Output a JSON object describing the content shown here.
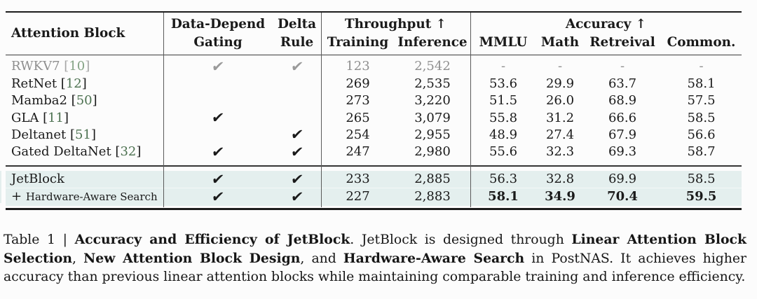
{
  "colors": {
    "background": "#fcfcfc",
    "text": "#1a1a1a",
    "muted_text": "#8f8f8f",
    "citation_green": "#4c7150",
    "muted_citation_green": "#85a385",
    "highlight_background": "#e4efee",
    "rule_color": "#1c1c1c"
  },
  "table": {
    "header": {
      "attention_block": "Attention Block",
      "gating_line1": "Data-Depend",
      "gating_line2": "Gating",
      "delta_line1": "Delta",
      "delta_line2": "Rule",
      "throughput_group": "Throughput ↑",
      "accuracy_group": "Accuracy ↑",
      "training": "Training",
      "inference": "Inference",
      "mmlu": "MMLU",
      "math": "Math",
      "retreival": "Retreival",
      "common": "Common."
    },
    "checkmark": "✔",
    "rows": [
      {
        "name": "RWKV7",
        "cite": "10",
        "gating": true,
        "delta": true,
        "training": "123",
        "inference": "2,542",
        "mmlu": "-",
        "math": "-",
        "retreival": "-",
        "common": "-",
        "muted": true
      },
      {
        "name": "RetNet",
        "cite": "12",
        "gating": false,
        "delta": false,
        "training": "269",
        "inference": "2,535",
        "mmlu": "53.6",
        "math": "29.9",
        "retreival": "63.7",
        "common": "58.1"
      },
      {
        "name": "Mamba2",
        "cite": "50",
        "gating": false,
        "delta": false,
        "training": "273",
        "inference": "3,220",
        "mmlu": "51.5",
        "math": "26.0",
        "retreival": "68.9",
        "common": "57.5"
      },
      {
        "name": "GLA",
        "cite": "11",
        "gating": true,
        "delta": false,
        "training": "265",
        "inference": "3,079",
        "mmlu": "55.8",
        "math": "31.2",
        "retreival": "66.6",
        "common": "58.5"
      },
      {
        "name": "Deltanet",
        "cite": "51",
        "gating": false,
        "delta": true,
        "training": "254",
        "inference": "2,955",
        "mmlu": "48.9",
        "math": "27.4",
        "retreival": "67.9",
        "common": "56.6"
      },
      {
        "name": "Gated DeltaNet",
        "cite": "32",
        "gating": true,
        "delta": true,
        "training": "247",
        "inference": "2,980",
        "mmlu": "55.6",
        "math": "32.3",
        "retreival": "69.3",
        "common": "58.7"
      }
    ],
    "highlight_rows": [
      {
        "name": "JetBlock",
        "gating": true,
        "delta": true,
        "training": "233",
        "inference": "2,885",
        "mmlu": "56.3",
        "math": "32.8",
        "retreival": "69.9",
        "common": "58.5"
      },
      {
        "name_prefix": "+",
        "name": "Hardware-Aware Search",
        "small_name": true,
        "gating": true,
        "delta": true,
        "training": "227",
        "inference": "2,883",
        "mmlu": "58.1",
        "math": "34.9",
        "retreival": "70.4",
        "common": "59.5",
        "bold_accuracy": true
      }
    ]
  },
  "caption": {
    "lines": [
      [
        {
          "t": "Table 1 | ",
          "b": false
        },
        {
          "t": "Accuracy and Efficiency of JetBlock",
          "b": true
        },
        {
          "t": ". JetBlock is designed through ",
          "b": false
        },
        {
          "t": "Linear Attention Block",
          "b": true
        }
      ],
      [
        {
          "t": "Selection",
          "b": true
        },
        {
          "t": ", ",
          "b": false
        },
        {
          "t": "New Attention Block Design",
          "b": true
        },
        {
          "t": ", and ",
          "b": false
        },
        {
          "t": "Hardware-Aware Search",
          "b": true
        },
        {
          "t": " in PostNAS. It achieves higher",
          "b": false
        }
      ],
      [
        {
          "t": "accuracy than previous linear attention blocks while maintaining comparable training and inference efficiency.",
          "b": false
        }
      ]
    ]
  }
}
